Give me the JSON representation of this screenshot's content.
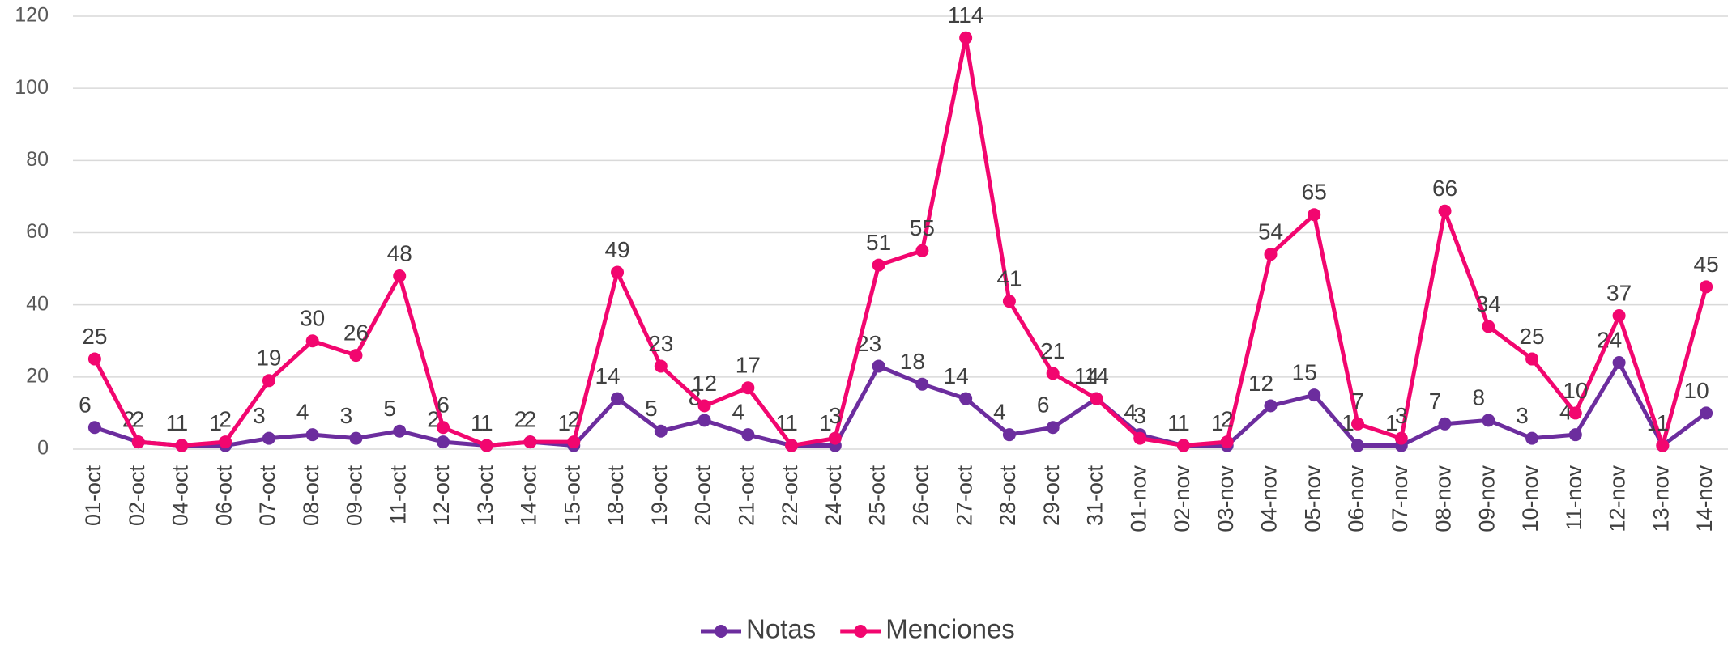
{
  "chart_data": {
    "type": "line",
    "categories": [
      "01-oct",
      "02-oct",
      "04-oct",
      "06-oct",
      "07-oct",
      "08-oct",
      "09-oct",
      "11-oct",
      "12-oct",
      "13-oct",
      "14-oct",
      "15-oct",
      "18-oct",
      "19-oct",
      "20-oct",
      "21-oct",
      "22-oct",
      "24-oct",
      "25-oct",
      "26-oct",
      "27-oct",
      "28-oct",
      "29-oct",
      "31-oct",
      "01-nov",
      "02-nov",
      "03-nov",
      "04-nov",
      "05-nov",
      "06-nov",
      "07-nov",
      "08-nov",
      "09-nov",
      "10-nov",
      "11-nov",
      "12-nov",
      "13-nov",
      "14-nov"
    ],
    "series": [
      {
        "name": "Notas",
        "color": "#6c2d9e",
        "values": [
          6,
          2,
          1,
          1,
          3,
          4,
          3,
          5,
          2,
          1,
          2,
          1,
          14,
          5,
          8,
          4,
          1,
          1,
          23,
          18,
          14,
          4,
          6,
          14,
          4,
          1,
          1,
          12,
          15,
          1,
          1,
          7,
          8,
          3,
          4,
          24,
          1,
          10
        ]
      },
      {
        "name": "Menciones",
        "color": "#f2066f",
        "values": [
          25,
          2,
          1,
          2,
          19,
          30,
          26,
          48,
          6,
          1,
          2,
          2,
          49,
          23,
          12,
          17,
          1,
          3,
          51,
          55,
          114,
          41,
          21,
          14,
          3,
          1,
          2,
          54,
          65,
          7,
          3,
          66,
          34,
          25,
          10,
          37,
          1,
          45
        ]
      }
    ],
    "ylim": [
      0,
      120
    ],
    "yticks": [
      0,
      20,
      40,
      60,
      80,
      100,
      120
    ],
    "grid": true,
    "legend": "bottom"
  }
}
